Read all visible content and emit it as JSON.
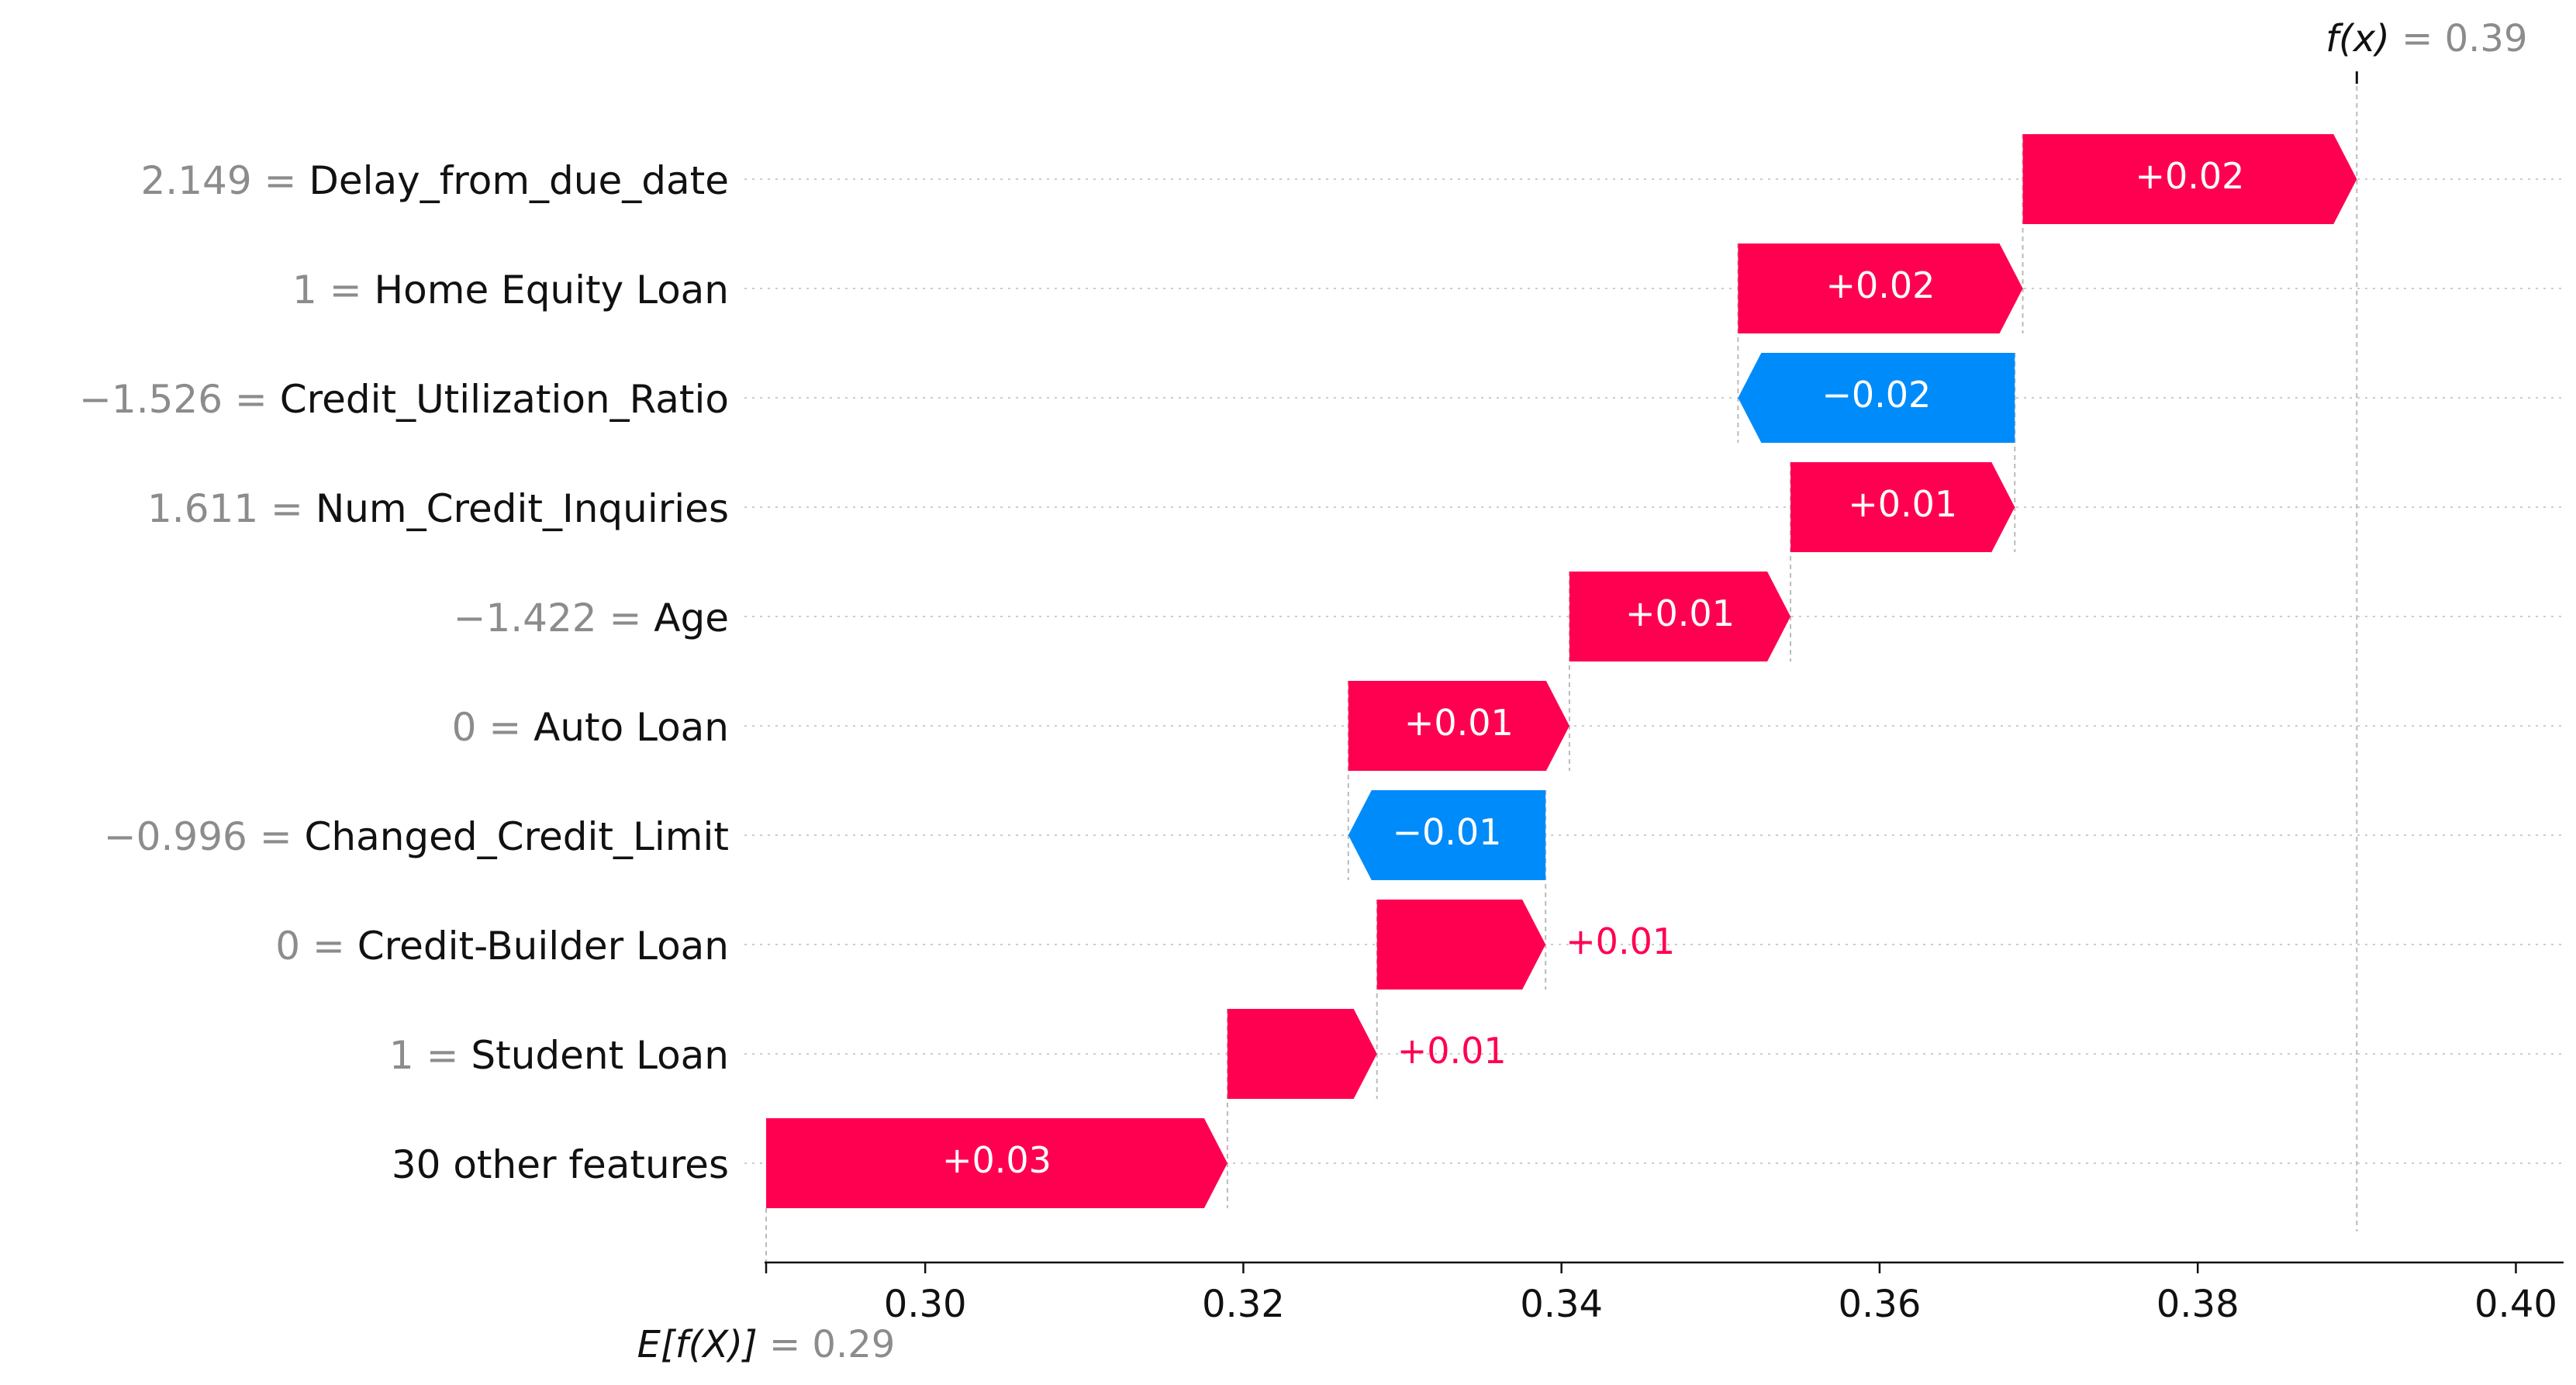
{
  "chart_data": {
    "type": "waterfall",
    "base_value": 0.29,
    "base_label": "E[f(X)]",
    "base_value_text": "= 0.29",
    "output_value": 0.39,
    "output_label": "f(x)",
    "output_value_text": "= 0.39",
    "xlim": [
      0.29,
      0.403
    ],
    "xticks": [
      {
        "value": 0.3,
        "label": "0.30"
      },
      {
        "value": 0.32,
        "label": "0.32"
      },
      {
        "value": 0.34,
        "label": "0.34"
      },
      {
        "value": 0.36,
        "label": "0.36"
      },
      {
        "value": 0.38,
        "label": "0.38"
      },
      {
        "value": 0.4,
        "label": "0.40"
      }
    ],
    "features": [
      {
        "value_text": "2.149",
        "name": "Delay_from_due_date",
        "start": 0.369,
        "end": 0.39,
        "label": "+0.02"
      },
      {
        "value_text": "1",
        "name": "Home Equity Loan",
        "start": 0.3511,
        "end": 0.369,
        "label": "+0.02"
      },
      {
        "value_text": "−1.526",
        "name": "Credit_Utilization_Ratio",
        "start": 0.3685,
        "end": 0.3511,
        "label": "−0.02"
      },
      {
        "value_text": "1.611",
        "name": "Num_Credit_Inquiries",
        "start": 0.3544,
        "end": 0.3685,
        "label": "+0.01"
      },
      {
        "value_text": "−1.422",
        "name": "Age",
        "start": 0.3405,
        "end": 0.3544,
        "label": "+0.01"
      },
      {
        "value_text": "0",
        "name": "Auto Loan",
        "start": 0.3266,
        "end": 0.3405,
        "label": "+0.01"
      },
      {
        "value_text": "−0.996",
        "name": "Changed_Credit_Limit",
        "start": 0.339,
        "end": 0.3266,
        "label": "−0.01"
      },
      {
        "value_text": "0",
        "name": "Credit-Builder Loan",
        "start": 0.3284,
        "end": 0.339,
        "label": "+0.01"
      },
      {
        "value_text": "1",
        "name": "Student Loan",
        "start": 0.319,
        "end": 0.3284,
        "label": "+0.01"
      },
      {
        "value_text": "",
        "name": "30 other features",
        "start": 0.29,
        "end": 0.319,
        "label": "+0.03"
      }
    ],
    "colors": {
      "positive": "#ff0051",
      "negative": "#008bfb",
      "grid": "#cccccc",
      "muted_text": "#8c8c8c",
      "text": "#111111"
    }
  }
}
